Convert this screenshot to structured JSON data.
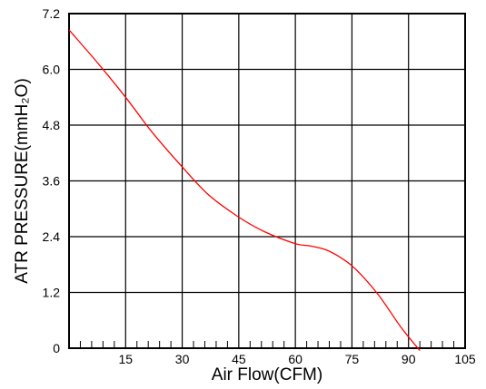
{
  "chart_data": {
    "type": "line",
    "title": "",
    "xlabel": "Air Flow(CFM)",
    "ylabel": "ATR PRESSURE(mmH₂O)",
    "xlim": [
      0,
      105
    ],
    "ylim": [
      0,
      7.2
    ],
    "xticks": [
      15,
      30,
      45,
      60,
      75,
      90,
      105
    ],
    "xtick_labels": [
      "15",
      "30",
      "45",
      "60",
      "75",
      "90",
      "105"
    ],
    "yticks": [
      0,
      1.2,
      2.4,
      3.6,
      4.8,
      6.0,
      7.2
    ],
    "ytick_labels": [
      "0",
      "1.2",
      "2.4",
      "3.6",
      "4.8",
      "6.0",
      "7.2"
    ],
    "grid": true,
    "series": [
      {
        "color": "#ff0000",
        "x": [
          0,
          8,
          15,
          22,
          30,
          37,
          45,
          52,
          60,
          64,
          68,
          72,
          76,
          82,
          88,
          93
        ],
        "y": [
          6.85,
          6.1,
          5.4,
          4.65,
          3.9,
          3.3,
          2.82,
          2.5,
          2.25,
          2.2,
          2.12,
          1.95,
          1.7,
          1.15,
          0.45,
          -0.05
        ]
      }
    ]
  }
}
